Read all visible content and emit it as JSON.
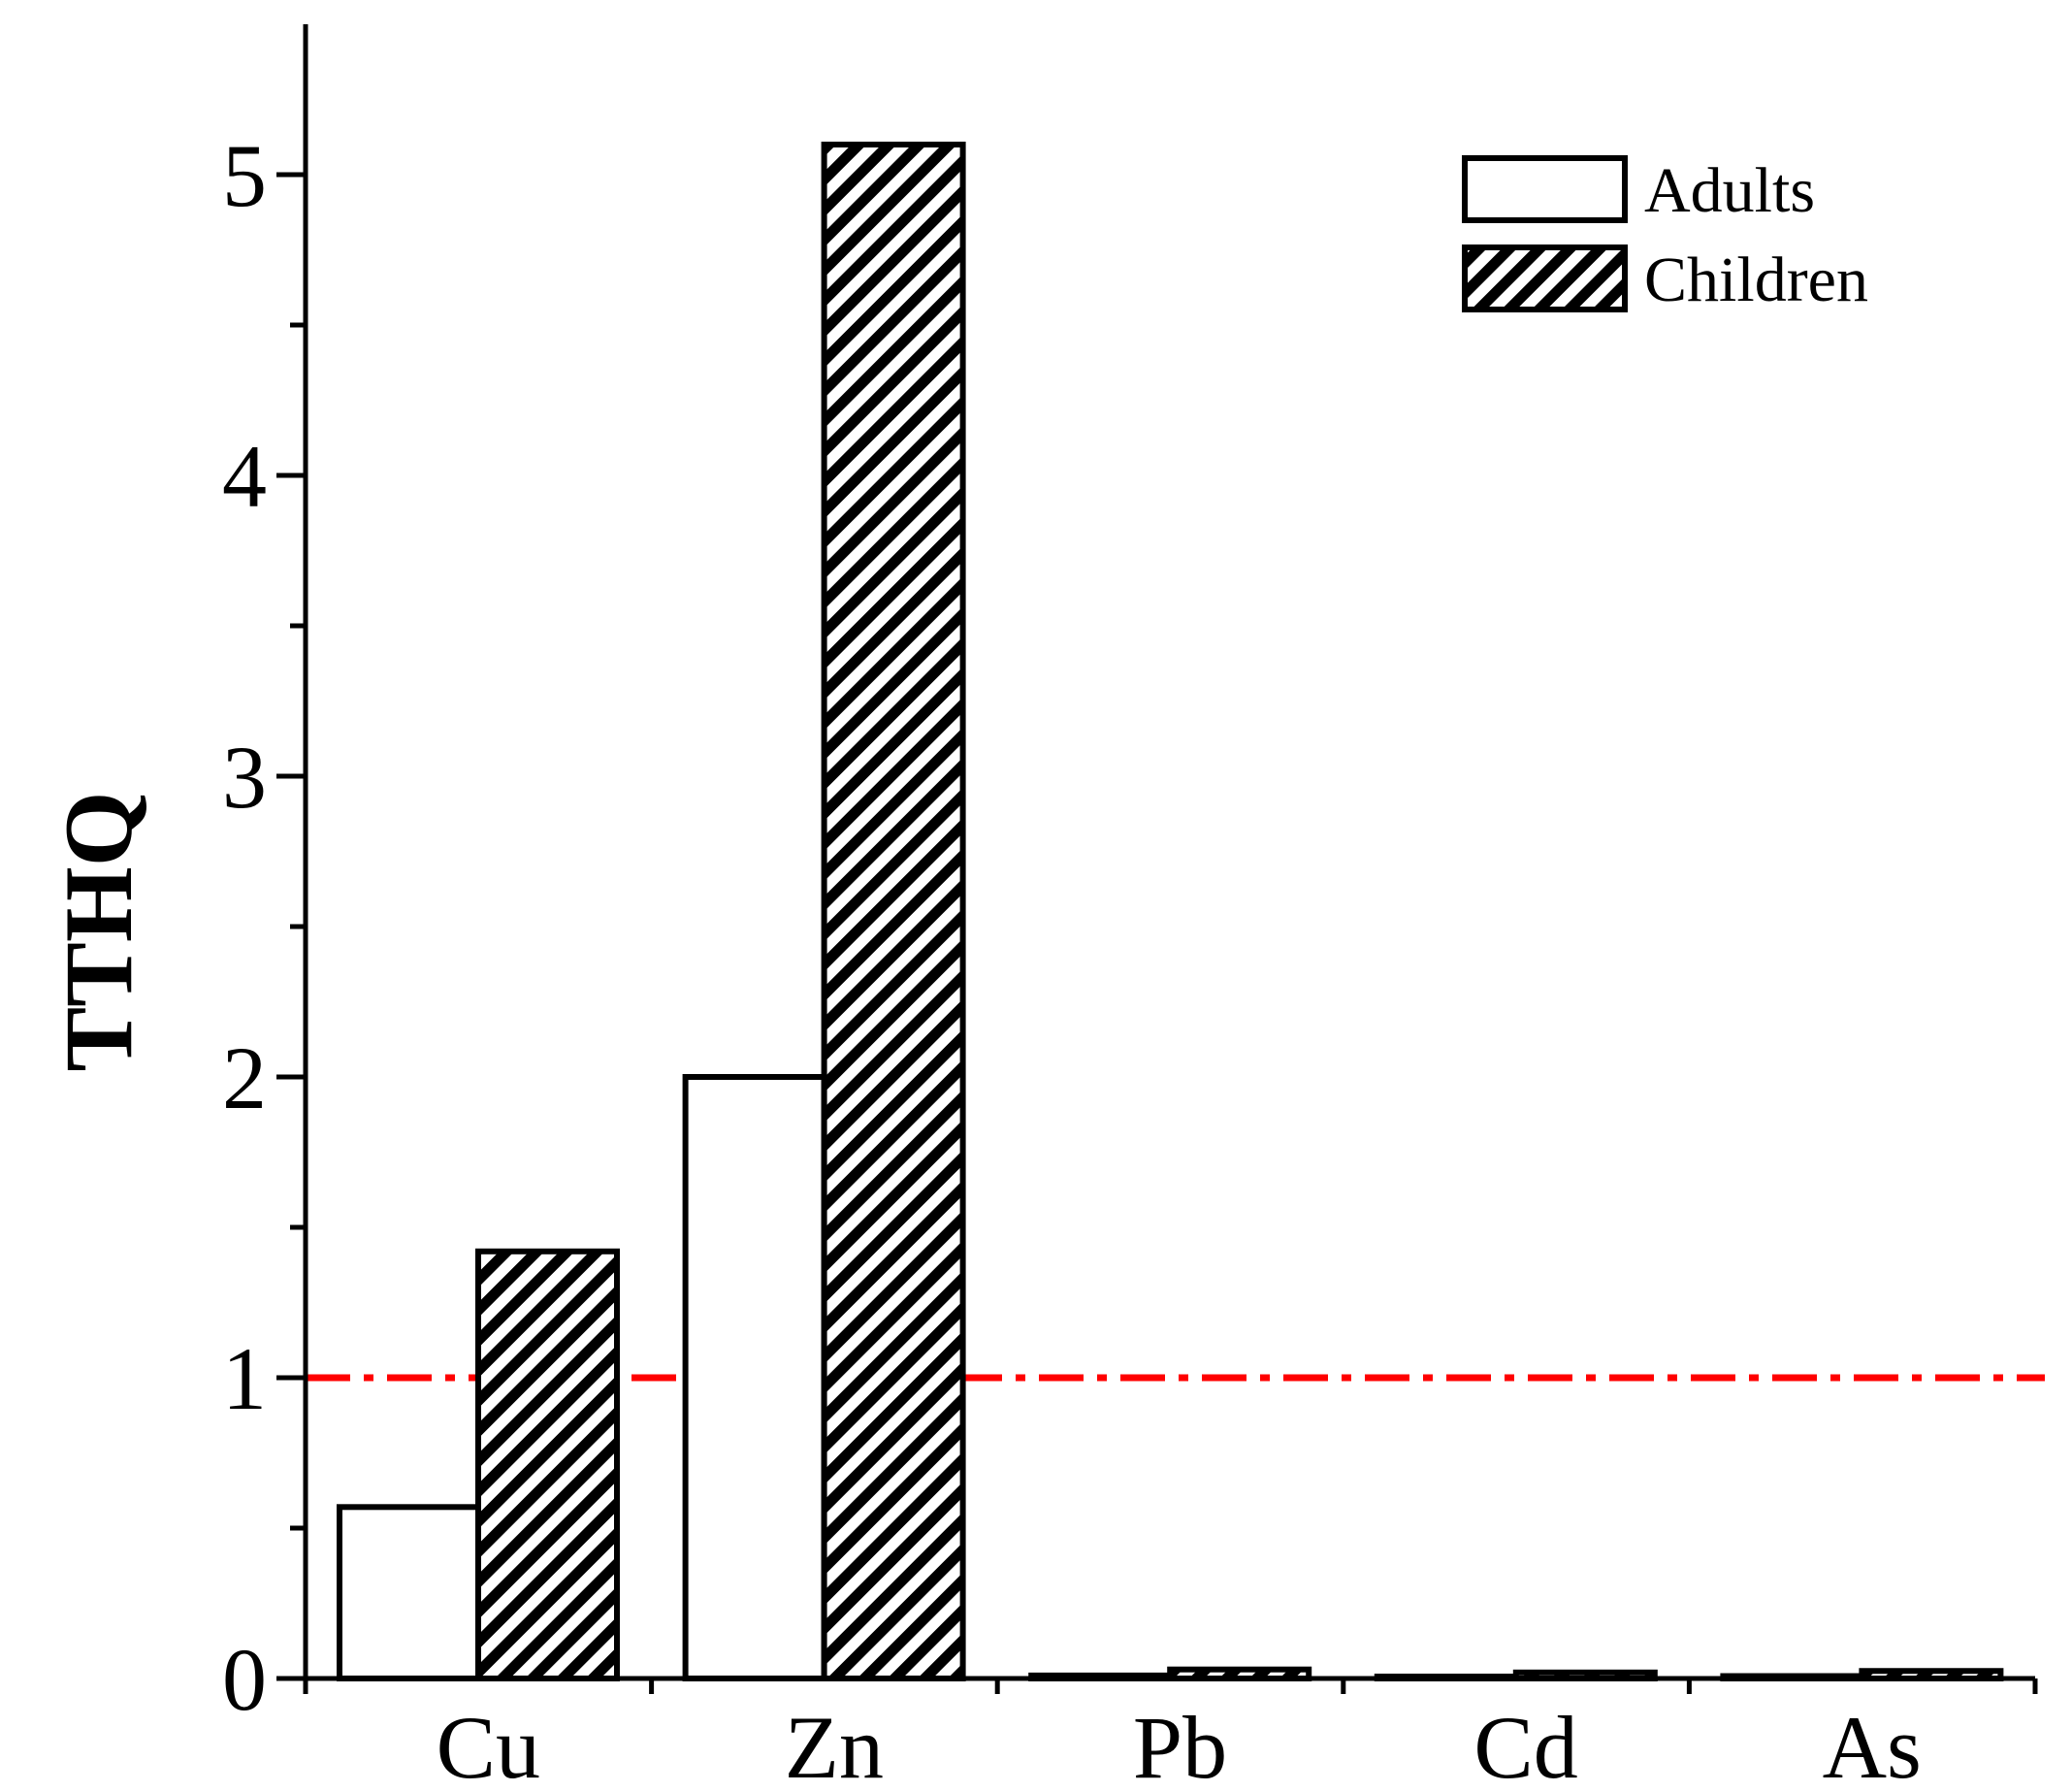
{
  "chart_data": {
    "type": "bar",
    "title": "",
    "xlabel": "",
    "ylabel": "TTHQ",
    "ylim": [
      0,
      5.5
    ],
    "yticks": [
      0,
      1,
      2,
      3,
      4,
      5
    ],
    "categories": [
      "Cu",
      "Zn",
      "Pb",
      "Cd",
      "As"
    ],
    "series": [
      {
        "name": "Adults",
        "values": [
          0.57,
          2.0,
          0.01,
          0.005,
          0.008
        ],
        "fill": "none"
      },
      {
        "name": "Children",
        "values": [
          1.42,
          5.1,
          0.03,
          0.02,
          0.025
        ],
        "fill": "hatched"
      }
    ],
    "reference_line": {
      "value": 1,
      "color": "#ff0000",
      "style": "dash-dot"
    },
    "legend": {
      "position": "top-right",
      "entries": [
        "Adults",
        "Children"
      ]
    },
    "grid": false
  }
}
